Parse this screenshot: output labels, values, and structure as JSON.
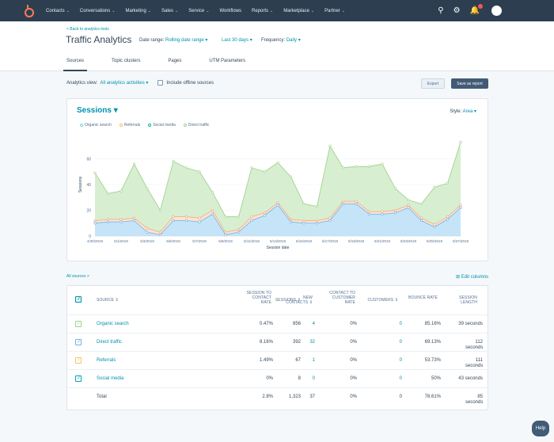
{
  "nav": {
    "items": [
      {
        "label": "Contacts"
      },
      {
        "label": "Conversations"
      },
      {
        "label": "Marketing"
      },
      {
        "label": "Sales"
      },
      {
        "label": "Service"
      },
      {
        "label": "Workflows"
      },
      {
        "label": "Reports"
      },
      {
        "label": "Marketplace"
      },
      {
        "label": "Partner"
      }
    ],
    "chevron": "⌄"
  },
  "header": {
    "back_link": "< Back to analytics tools",
    "title": "Traffic Analytics",
    "date_range_label": "Date range:",
    "date_range_value": "Rolling date range ▾",
    "last_days_value": "Last 30 days ▾",
    "frequency_label": "Frequency:",
    "frequency_value": "Daily ▾",
    "tabs": [
      {
        "label": "Sources"
      },
      {
        "label": "Topic clusters"
      },
      {
        "label": "Pages"
      },
      {
        "label": "UTM Parameters"
      }
    ]
  },
  "analytics_bar": {
    "view_label": "Analytics view:",
    "view_value": "All analytics activities ▾",
    "offline_label": "Include offline sources",
    "export_label": "Export",
    "save_label": "Save as report"
  },
  "chart": {
    "title": "Sessions ▾",
    "style_label": "Style:",
    "style_value": "Area ▾",
    "legend": [
      {
        "name": "Organic search",
        "color": "#7fd1de"
      },
      {
        "name": "Referrals",
        "color": "#f5c26b"
      },
      {
        "name": "Social media",
        "color": "#00bda5"
      },
      {
        "name": "Direct traffic",
        "color": "#a2d28f"
      }
    ]
  },
  "chart_data": {
    "type": "area",
    "ylabel": "Sessions",
    "xlabel": "Session date",
    "ylim": [
      0,
      80
    ],
    "yticks": [
      "0",
      "20",
      "40",
      "60"
    ],
    "ytick_values": [
      0,
      20,
      40,
      60
    ],
    "xtick_labels": [
      "4/30/2019",
      "5/1/2019",
      "5/3/2019",
      "5/5/2019",
      "5/7/2019",
      "5/9/2019",
      "5/11/2019",
      "5/13/2019",
      "5/15/2019",
      "5/17/2019",
      "5/19/2019",
      "5/21/2019",
      "5/23/2019",
      "5/25/2019",
      "5/27/2019"
    ],
    "colors": {
      "organic": "#c5e4f8",
      "organic_line": "#6fb3e6",
      "referral": "#fde3d0",
      "referral_line": "#f2a47a",
      "direct": "#d7efd0",
      "direct_line": "#a2d28f"
    },
    "series_organic": [
      10,
      11,
      11,
      12,
      3,
      1,
      12,
      12,
      11,
      17,
      1,
      3,
      12,
      16,
      24,
      11,
      10,
      10,
      12,
      25,
      25,
      17,
      17,
      18,
      22,
      12,
      7,
      13,
      22
    ],
    "series_referral": [
      12,
      13,
      13,
      14,
      6,
      3,
      15,
      15,
      14,
      20,
      3,
      5,
      15,
      18,
      26,
      13,
      12,
      12,
      14,
      27,
      27,
      19,
      19,
      20,
      24,
      14,
      9,
      15,
      24
    ],
    "series_total": [
      49,
      33,
      35,
      56,
      37,
      20,
      58,
      53,
      50,
      34,
      15,
      15,
      53,
      50,
      57,
      46,
      25,
      23,
      70,
      53,
      54,
      54,
      56,
      37,
      28,
      25,
      38,
      41,
      73
    ]
  },
  "table": {
    "all_sources": "All sources >",
    "edit_columns": "⊞ Edit columns",
    "headers": {
      "source": "Source ⇕",
      "sessions": "Sessions ⇕",
      "s2c": "Session to contact rate",
      "new_contacts": "New contacts ⇕",
      "c2c": "Contact to customer rate",
      "customers": "Customers ⇕",
      "bounce": "Bounce rate",
      "length": "Session length"
    },
    "rows": [
      {
        "source": "Organic search",
        "sessions": "856",
        "s2c": "0.47%",
        "new_contacts": "4",
        "c2c": "0%",
        "customers": "0",
        "bounce": "85.16%",
        "length": "39 seconds",
        "color": "#a2d28f"
      },
      {
        "source": "Direct traffic",
        "sessions": "392",
        "s2c": "8.16%",
        "new_contacts": "32",
        "c2c": "0%",
        "customers": "0",
        "bounce": "69.13%",
        "length": "112 seconds",
        "color": "#6fb3e6"
      },
      {
        "source": "Referrals",
        "sessions": "67",
        "s2c": "1.49%",
        "new_contacts": "1",
        "c2c": "0%",
        "customers": "0",
        "bounce": "53.73%",
        "length": "111 seconds",
        "color": "#f5c26b"
      },
      {
        "source": "Social media",
        "sessions": "8",
        "s2c": "0%",
        "new_contacts": "0",
        "c2c": "0%",
        "customers": "0",
        "bounce": "50%",
        "length": "43 seconds",
        "color": "#00a4bd"
      }
    ],
    "total": {
      "label": "Total",
      "sessions": "1,323",
      "s2c": "2.8%",
      "new_contacts": "37",
      "c2c": "0%",
      "customers": "0",
      "bounce": "78.61%",
      "length": "85 seconds"
    }
  },
  "help_label": "Help"
}
